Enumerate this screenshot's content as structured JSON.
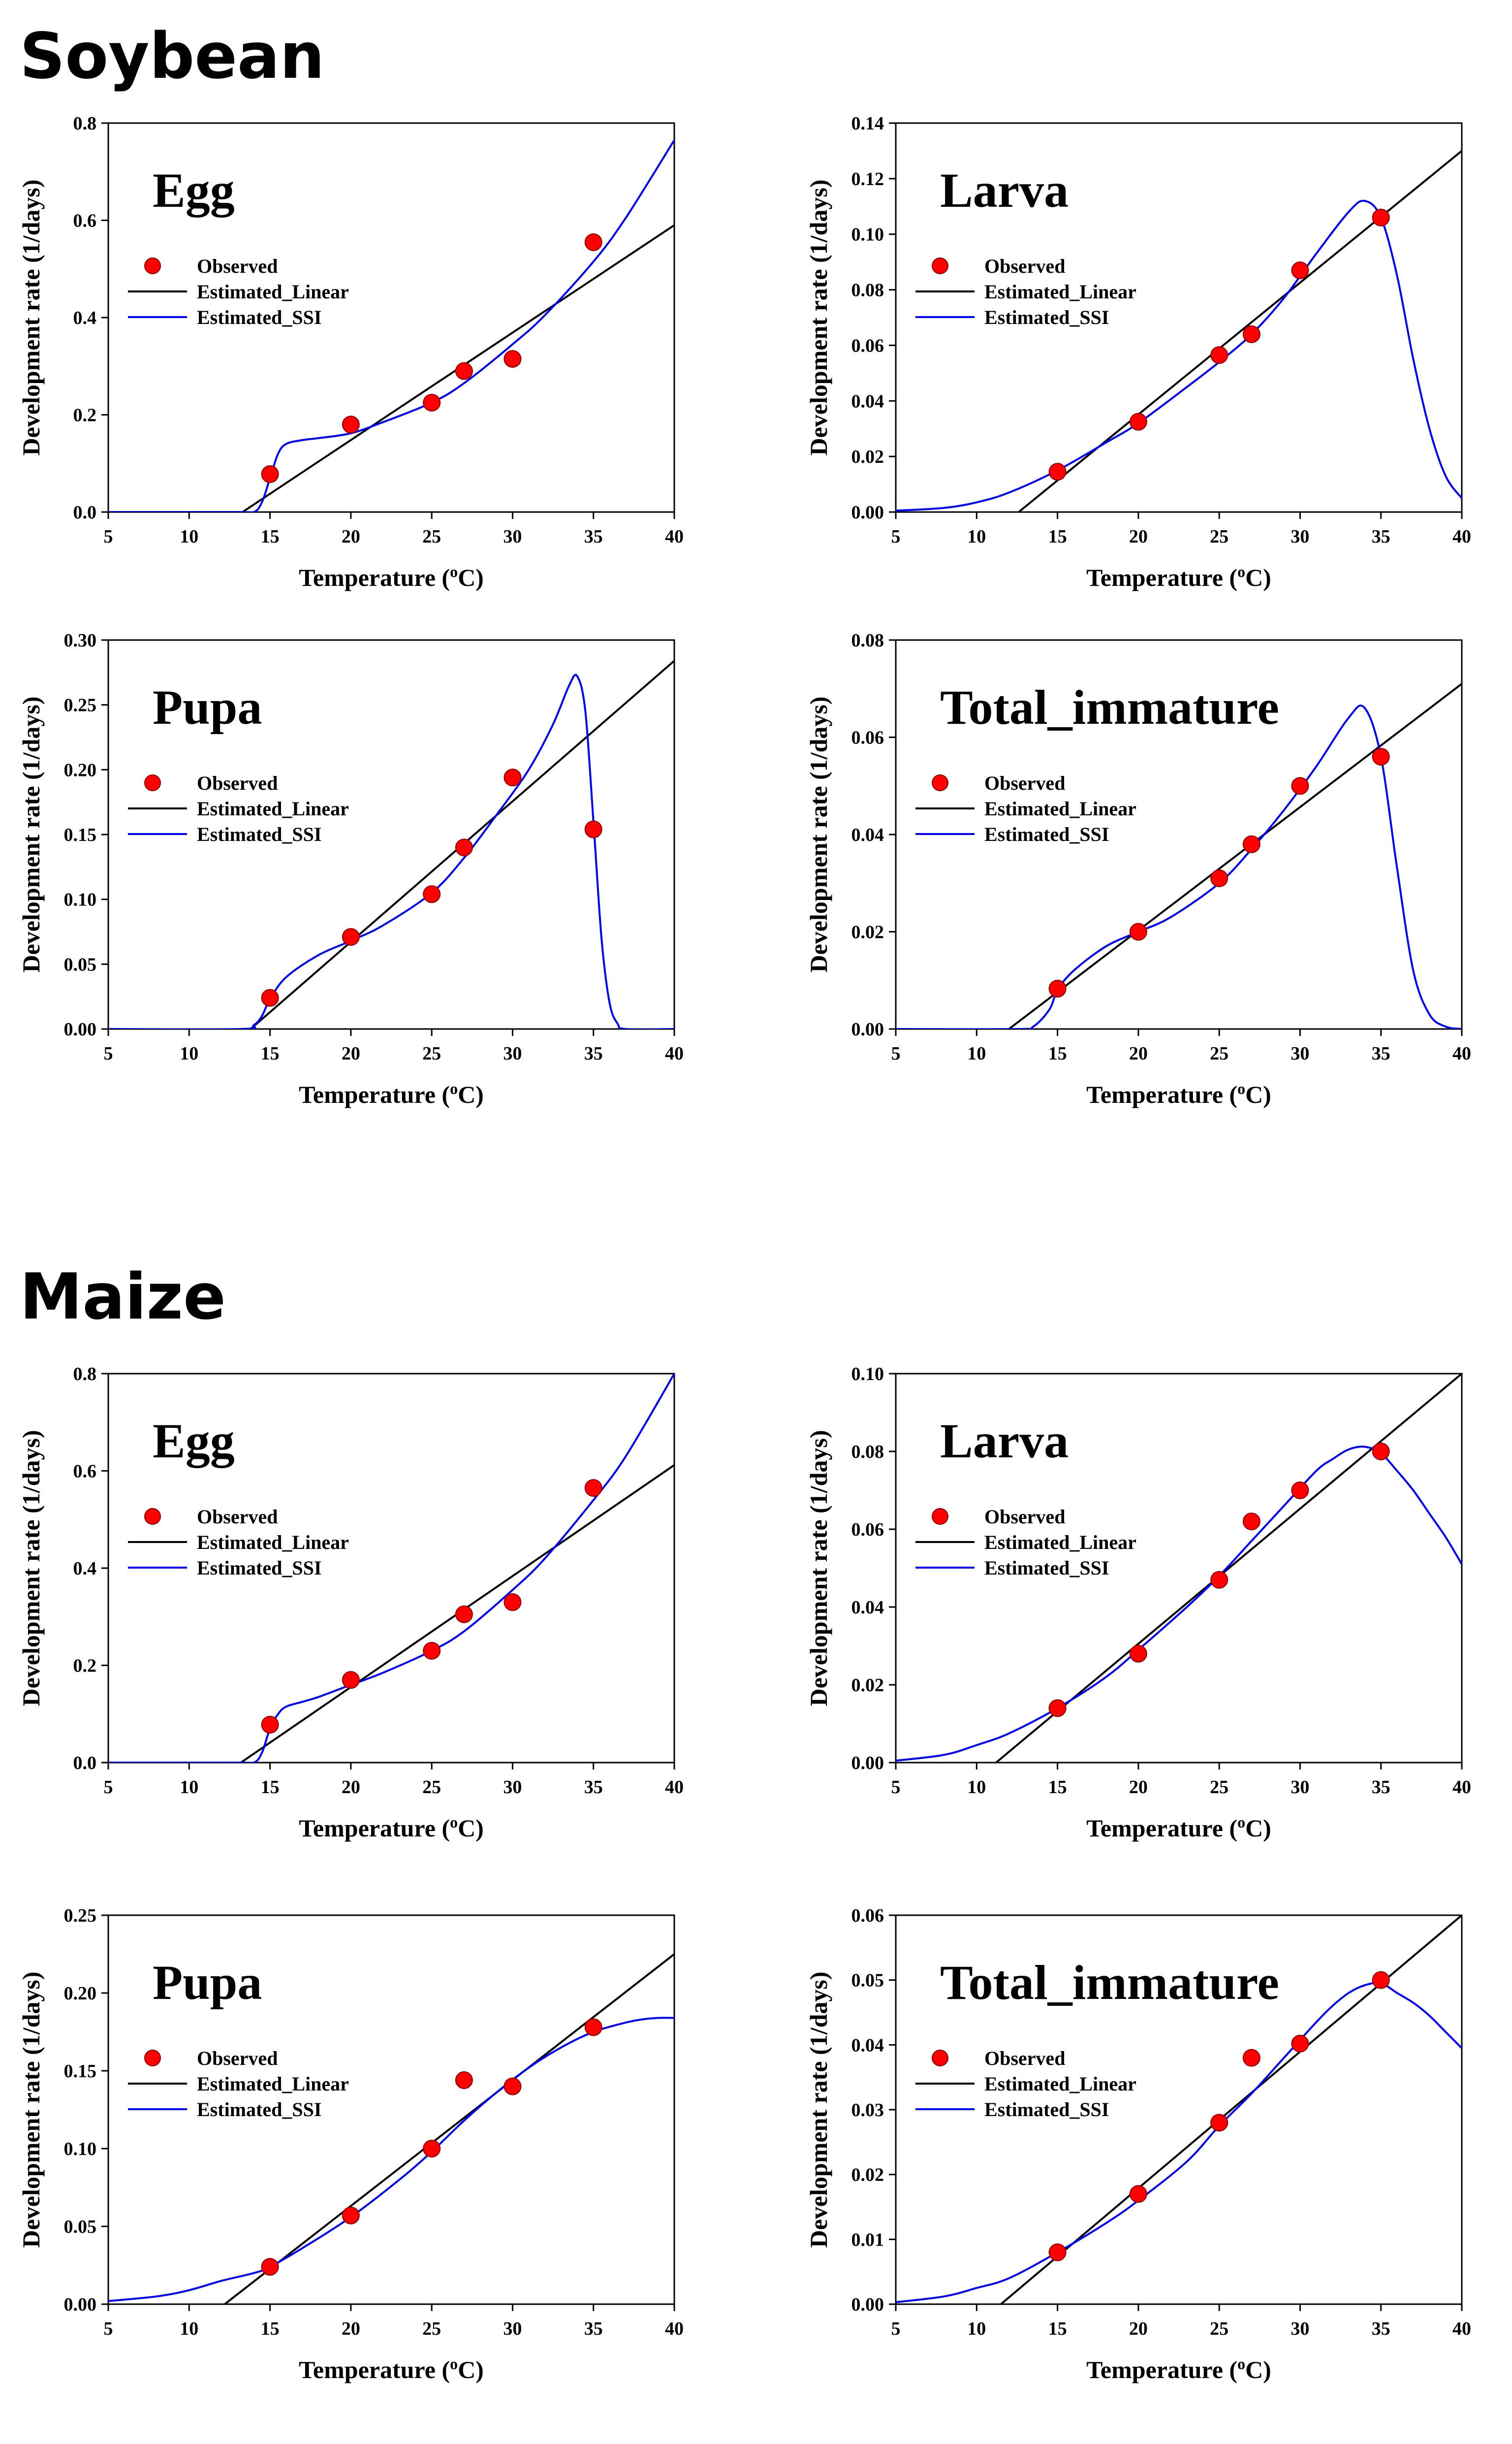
{
  "sections": [
    {
      "title": "Soybean"
    },
    {
      "title": "Maize"
    }
  ],
  "chart_data": [
    {
      "type": "line",
      "section": "Soybean",
      "title": "Egg",
      "xlabel": "Temperature (oC)",
      "ylabel": "Development rate (1/days)",
      "xlim": [
        5,
        40
      ],
      "ylim": [
        0,
        0.8
      ],
      "xticks": [
        "5",
        "10",
        "15",
        "20",
        "25",
        "30",
        "35",
        "40"
      ],
      "yticks": [
        "0.0",
        "0.2",
        "0.4",
        "0.6",
        "0.8"
      ],
      "legend": [
        "Observed",
        "Estimated_Linear",
        "Estimated_SSI"
      ],
      "legend_position": "upper-left",
      "colors": {
        "observed": "#ff0000",
        "linear": "#000000",
        "ssi": "#0000ff"
      },
      "observed": {
        "x": [
          15,
          20,
          25,
          27,
          30,
          35
        ],
        "y": [
          0.078,
          0.18,
          0.225,
          0.29,
          0.315,
          0.555
        ]
      },
      "linear": {
        "x": [
          13.3,
          40
        ],
        "y": [
          0,
          0.59
        ]
      },
      "ssi": {
        "x": [
          5,
          13.0,
          14.0,
          14.5,
          15.0,
          15.5,
          16,
          17,
          18,
          20,
          22,
          25,
          27,
          30,
          32,
          35,
          37,
          40
        ],
        "y": [
          0,
          0.0,
          0.0,
          0.02,
          0.07,
          0.12,
          0.14,
          0.148,
          0.152,
          0.162,
          0.185,
          0.225,
          0.265,
          0.345,
          0.405,
          0.515,
          0.605,
          0.765
        ]
      }
    },
    {
      "type": "line",
      "section": "Soybean",
      "title": "Larva",
      "xlabel": "Temperature (oC)",
      "ylabel": "Development rate (1/days)",
      "xlim": [
        5,
        40
      ],
      "ylim": [
        0,
        0.14
      ],
      "xticks": [
        "5",
        "10",
        "15",
        "20",
        "25",
        "30",
        "35",
        "40"
      ],
      "yticks": [
        "0.00",
        "0.02",
        "0.04",
        "0.06",
        "0.08",
        "0.10",
        "0.12",
        "0.14"
      ],
      "legend": [
        "Observed",
        "Estimated_Linear",
        "Estimated_SSI"
      ],
      "legend_position": "upper-left",
      "colors": {
        "observed": "#ff0000",
        "linear": "#000000",
        "ssi": "#0000ff"
      },
      "observed": {
        "x": [
          15,
          20,
          25,
          27,
          30,
          35
        ],
        "y": [
          0.0145,
          0.0325,
          0.0565,
          0.064,
          0.087,
          0.106
        ]
      },
      "linear": {
        "x": [
          12.6,
          40
        ],
        "y": [
          0,
          0.13
        ]
      },
      "ssi": {
        "x": [
          5,
          8,
          10,
          12,
          15,
          18,
          20,
          23,
          25,
          27,
          29,
          31,
          33,
          34,
          35,
          36,
          37,
          38,
          39,
          40
        ],
        "y": [
          0.0005,
          0.0015,
          0.0035,
          0.007,
          0.015,
          0.025,
          0.032,
          0.045,
          0.054,
          0.064,
          0.077,
          0.093,
          0.108,
          0.112,
          0.106,
          0.085,
          0.055,
          0.03,
          0.013,
          0.005
        ]
      }
    },
    {
      "type": "line",
      "section": "Soybean",
      "title": "Pupa",
      "xlabel": "Temperature (oC)",
      "ylabel": "Development rate (1/days)",
      "xlim": [
        5,
        40
      ],
      "ylim": [
        0,
        0.3
      ],
      "xticks": [
        "5",
        "10",
        "15",
        "20",
        "25",
        "30",
        "35",
        "40"
      ],
      "yticks": [
        "0.00",
        "0.05",
        "0.10",
        "0.15",
        "0.20",
        "0.25",
        "0.30"
      ],
      "legend": [
        "Observed",
        "Estimated_Linear",
        "Estimated_SSI"
      ],
      "legend_position": "upper-left",
      "colors": {
        "observed": "#ff0000",
        "linear": "#000000",
        "ssi": "#0000ff"
      },
      "observed": {
        "x": [
          15,
          20,
          25,
          27,
          30,
          35
        ],
        "y": [
          0.024,
          0.071,
          0.104,
          0.14,
          0.194,
          0.154
        ]
      },
      "linear": {
        "x": [
          13.8,
          40
        ],
        "y": [
          0,
          0.284
        ]
      },
      "ssi": {
        "x": [
          5,
          13.2,
          14,
          14.5,
          15,
          16,
          18,
          20,
          22,
          25,
          27,
          29,
          31,
          32.5,
          33.5,
          34,
          34.5,
          35,
          35.5,
          36,
          36.5,
          37,
          40
        ],
        "y": [
          0,
          0,
          0.003,
          0.01,
          0.023,
          0.04,
          0.057,
          0.068,
          0.08,
          0.105,
          0.132,
          0.165,
          0.2,
          0.235,
          0.265,
          0.272,
          0.245,
          0.16,
          0.07,
          0.02,
          0.004,
          0,
          0
        ]
      }
    },
    {
      "type": "line",
      "section": "Soybean",
      "title": "Total_immature",
      "xlabel": "Temperature (oC)",
      "ylabel": "Development rate (1/days)",
      "xlim": [
        5,
        40
      ],
      "ylim": [
        0,
        0.08
      ],
      "xticks": [
        "5",
        "10",
        "15",
        "20",
        "25",
        "30",
        "35",
        "40"
      ],
      "yticks": [
        "0.00",
        "0.02",
        "0.04",
        "0.06",
        "0.08"
      ],
      "legend": [
        "Observed",
        "Estimated_Linear",
        "Estimated_SSI"
      ],
      "legend_position": "upper-left",
      "colors": {
        "observed": "#ff0000",
        "linear": "#000000",
        "ssi": "#0000ff"
      },
      "observed": {
        "x": [
          15,
          20,
          25,
          27,
          30,
          35
        ],
        "y": [
          0.0083,
          0.02,
          0.031,
          0.038,
          0.05,
          0.056
        ]
      },
      "linear": {
        "x": [
          12.0,
          40
        ],
        "y": [
          0,
          0.071
        ]
      },
      "ssi": {
        "x": [
          5,
          12.5,
          13.5,
          14.5,
          15,
          16,
          18,
          20,
          22,
          25,
          27,
          29,
          31,
          33,
          34,
          35,
          36,
          37,
          38,
          39,
          40
        ],
        "y": [
          0,
          0,
          0.0005,
          0.004,
          0.008,
          0.012,
          0.017,
          0.02,
          0.023,
          0.03,
          0.037,
          0.045,
          0.054,
          0.064,
          0.066,
          0.056,
          0.033,
          0.012,
          0.003,
          0.0005,
          0
        ]
      }
    },
    {
      "type": "line",
      "section": "Maize",
      "title": "Egg",
      "xlabel": "Temperature (oC)",
      "ylabel": "Development rate (1/days)",
      "xlim": [
        5,
        40
      ],
      "ylim": [
        0,
        0.8
      ],
      "xticks": [
        "5",
        "10",
        "15",
        "20",
        "25",
        "30",
        "35",
        "40"
      ],
      "yticks": [
        "0.0",
        "0.2",
        "0.4",
        "0.6",
        "0.8"
      ],
      "legend": [
        "Observed",
        "Estimated_Linear",
        "Estimated_SSI"
      ],
      "legend_position": "upper-left",
      "colors": {
        "observed": "#ff0000",
        "linear": "#000000",
        "ssi": "#0000ff"
      },
      "observed": {
        "x": [
          15,
          20,
          25,
          27,
          30,
          35
        ],
        "y": [
          0.078,
          0.17,
          0.23,
          0.305,
          0.33,
          0.565
        ]
      },
      "linear": {
        "x": [
          13.2,
          40
        ],
        "y": [
          0,
          0.612
        ]
      },
      "ssi": {
        "x": [
          5,
          13.0,
          14.0,
          14.5,
          15.0,
          15.5,
          16,
          17,
          18,
          20,
          22,
          25,
          27,
          30,
          32,
          35,
          37,
          40
        ],
        "y": [
          0,
          0.0,
          0.0,
          0.02,
          0.07,
          0.1,
          0.115,
          0.125,
          0.135,
          0.16,
          0.185,
          0.23,
          0.27,
          0.355,
          0.42,
          0.54,
          0.63,
          0.8
        ]
      }
    },
    {
      "type": "line",
      "section": "Maize",
      "title": "Larva",
      "xlabel": "Temperature (oC)",
      "ylabel": "Development rate (1/days)",
      "xlim": [
        5,
        40
      ],
      "ylim": [
        0,
        0.1
      ],
      "xticks": [
        "5",
        "10",
        "15",
        "20",
        "25",
        "30",
        "35",
        "40"
      ],
      "yticks": [
        "0.00",
        "0.02",
        "0.04",
        "0.06",
        "0.08",
        "0.10"
      ],
      "legend": [
        "Observed",
        "Estimated_Linear",
        "Estimated_SSI"
      ],
      "legend_position": "upper-left",
      "colors": {
        "observed": "#ff0000",
        "linear": "#000000",
        "ssi": "#0000ff"
      },
      "observed": {
        "x": [
          15,
          20,
          25,
          27,
          30,
          35
        ],
        "y": [
          0.014,
          0.028,
          0.047,
          0.062,
          0.07,
          0.08
        ]
      },
      "linear": {
        "x": [
          11.2,
          40
        ],
        "y": [
          0,
          0.1
        ]
      },
      "ssi": {
        "x": [
          5,
          8,
          10,
          12,
          15,
          18,
          20,
          23,
          25,
          27,
          29,
          31,
          32,
          33,
          34,
          35,
          36,
          37,
          38,
          39,
          40
        ],
        "y": [
          0.0005,
          0.002,
          0.0045,
          0.0075,
          0.014,
          0.022,
          0.029,
          0.04,
          0.048,
          0.057,
          0.066,
          0.075,
          0.078,
          0.0805,
          0.0812,
          0.0795,
          0.075,
          0.07,
          0.064,
          0.058,
          0.051
        ]
      }
    },
    {
      "type": "line",
      "section": "Maize",
      "title": "Pupa",
      "xlabel": "Temperature (oC)",
      "ylabel": "Development rate (1/days)",
      "xlim": [
        5,
        40
      ],
      "ylim": [
        0,
        0.25
      ],
      "xticks": [
        "5",
        "10",
        "15",
        "20",
        "25",
        "30",
        "35",
        "40"
      ],
      "yticks": [
        "0.00",
        "0.05",
        "0.10",
        "0.15",
        "0.20",
        "0.25"
      ],
      "legend": [
        "Observed",
        "Estimated_Linear",
        "Estimated_SSI"
      ],
      "legend_position": "upper-left",
      "colors": {
        "observed": "#ff0000",
        "linear": "#000000",
        "ssi": "#0000ff"
      },
      "observed": {
        "x": [
          15,
          20,
          25,
          27,
          30,
          35
        ],
        "y": [
          0.024,
          0.057,
          0.1,
          0.144,
          0.14,
          0.178
        ]
      },
      "linear": {
        "x": [
          12.2,
          40
        ],
        "y": [
          0,
          0.225
        ]
      },
      "ssi": {
        "x": [
          5,
          8,
          10,
          12,
          14,
          15,
          17,
          20,
          23,
          25,
          27,
          29,
          31,
          33,
          35,
          37,
          38,
          39,
          40
        ],
        "y": [
          0.002,
          0.005,
          0.009,
          0.015,
          0.02,
          0.024,
          0.036,
          0.056,
          0.08,
          0.098,
          0.118,
          0.136,
          0.152,
          0.165,
          0.175,
          0.181,
          0.183,
          0.184,
          0.184
        ]
      }
    },
    {
      "type": "line",
      "section": "Maize",
      "title": "Total_immature",
      "xlabel": "Temperature (oC)",
      "ylabel": "Development rate (1/days)",
      "xlim": [
        5,
        40
      ],
      "ylim": [
        0,
        0.06
      ],
      "xticks": [
        "5",
        "10",
        "15",
        "20",
        "25",
        "30",
        "35",
        "40"
      ],
      "yticks": [
        "0.00",
        "0.01",
        "0.02",
        "0.03",
        "0.04",
        "0.05",
        "0.06"
      ],
      "legend": [
        "Observed",
        "Estimated_Linear",
        "Estimated_SSI"
      ],
      "legend_position": "upper-left",
      "colors": {
        "observed": "#ff0000",
        "linear": "#000000",
        "ssi": "#0000ff"
      },
      "observed": {
        "x": [
          15,
          20,
          25,
          27,
          30,
          35
        ],
        "y": [
          0.008,
          0.017,
          0.028,
          0.038,
          0.0402,
          0.05
        ]
      },
      "linear": {
        "x": [
          11.5,
          40
        ],
        "y": [
          0,
          0.06
        ]
      },
      "ssi": {
        "x": [
          5,
          8,
          10,
          12,
          15,
          18,
          20,
          23,
          25,
          27,
          29,
          31,
          32,
          33,
          34,
          35,
          36,
          37,
          38,
          39,
          40
        ],
        "y": [
          0.0003,
          0.0012,
          0.0025,
          0.004,
          0.008,
          0.0125,
          0.016,
          0.022,
          0.0275,
          0.0325,
          0.038,
          0.0435,
          0.046,
          0.048,
          0.0492,
          0.0495,
          0.048,
          0.0465,
          0.0445,
          0.042,
          0.0395
        ]
      }
    }
  ]
}
